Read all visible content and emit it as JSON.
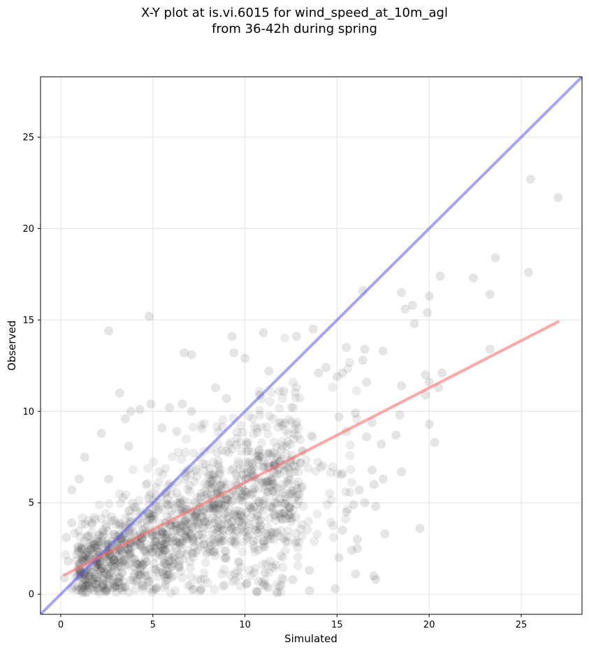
{
  "chart_data": {
    "type": "scatter",
    "title": [
      "X-Y plot at is.vi.6015 for wind_speed_at_10m_agl",
      "from 36-42h during spring"
    ],
    "xlabel": "Simulated",
    "ylabel": "Observed",
    "xlim": [
      -1.1,
      28.3
    ],
    "ylim": [
      -1.1,
      28.3
    ],
    "xticks": [
      0,
      5,
      10,
      15,
      20,
      25
    ],
    "yticks": [
      0,
      5,
      10,
      15,
      20,
      25
    ],
    "grid": true,
    "colors": {
      "points": "#000000",
      "identity_line": "#5a5aff",
      "fit_line": "#ff6b6b"
    },
    "identity_line": {
      "from": [
        -1.1,
        -1.1
      ],
      "to": [
        28.3,
        28.3
      ]
    },
    "fit_line": {
      "from": [
        0.2,
        1.05
      ],
      "to": [
        27.0,
        14.9
      ]
    },
    "points": [
      [
        25.5,
        22.7
      ],
      [
        27.0,
        21.7
      ],
      [
        23.6,
        18.4
      ],
      [
        20.6,
        17.4
      ],
      [
        22.4,
        17.3
      ],
      [
        25.4,
        17.6
      ],
      [
        16.4,
        16.6
      ],
      [
        23.3,
        16.4
      ],
      [
        18.5,
        16.5
      ],
      [
        20.0,
        16.3
      ],
      [
        19.1,
        15.8
      ],
      [
        18.7,
        15.6
      ],
      [
        19.9,
        15.4
      ],
      [
        19.2,
        14.8
      ],
      [
        4.8,
        15.2
      ],
      [
        2.6,
        14.4
      ],
      [
        13.7,
        14.5
      ],
      [
        11.0,
        14.3
      ],
      [
        9.3,
        14.1
      ],
      [
        12.8,
        14.1
      ],
      [
        15.5,
        13.5
      ],
      [
        16.5,
        13.4
      ],
      [
        17.5,
        13.3
      ],
      [
        23.3,
        13.4
      ],
      [
        6.7,
        13.2
      ],
      [
        7.1,
        13.1
      ],
      [
        9.4,
        13.2
      ],
      [
        10.0,
        12.9
      ],
      [
        16.4,
        12.8
      ],
      [
        11.3,
        12.2
      ],
      [
        14.4,
        12.4
      ],
      [
        16.6,
        11.6
      ],
      [
        18.5,
        11.4
      ],
      [
        19.8,
        12.0
      ],
      [
        20.7,
        12.1
      ],
      [
        20.0,
        11.6
      ],
      [
        19.8,
        10.9
      ],
      [
        20.5,
        11.3
      ],
      [
        3.2,
        11.0
      ],
      [
        17.4,
        8.2
      ],
      [
        18.4,
        9.8
      ],
      [
        20.0,
        9.3
      ],
      [
        20.3,
        8.3
      ],
      [
        18.2,
        8.7
      ],
      [
        18.5,
        6.7
      ],
      [
        19.5,
        3.6
      ],
      [
        17.6,
        3.3
      ],
      [
        17.0,
        1.0
      ],
      [
        17.1,
        0.8
      ],
      [
        16.0,
        1.1
      ],
      [
        15.9,
        4.9
      ],
      [
        17.1,
        4.8
      ],
      [
        17.5,
        6.3
      ],
      [
        16.9,
        6.8
      ],
      [
        13.5,
        0.2
      ],
      [
        13.5,
        1.3
      ],
      [
        14.9,
        0.3
      ],
      [
        12.6,
        0.8
      ],
      [
        11.1,
        1.2
      ],
      [
        10.1,
        0.6
      ],
      [
        2.2,
        8.8
      ],
      [
        1.3,
        7.5
      ],
      [
        0.6,
        5.7
      ],
      [
        1.0,
        6.3
      ],
      [
        2.6,
        6.3
      ],
      [
        3.7,
        8.1
      ],
      [
        3.5,
        9.6
      ],
      [
        3.8,
        10.0
      ],
      [
        4.3,
        10.1
      ],
      [
        5.9,
        10.2
      ],
      [
        6.6,
        10.4
      ],
      [
        4.9,
        10.4
      ],
      [
        5.5,
        9.1
      ],
      [
        6.3,
        8.9
      ],
      [
        7.1,
        10.0
      ],
      [
        8.4,
        11.3
      ],
      [
        9.0,
        10.7
      ],
      [
        10.8,
        10.9
      ],
      [
        12.1,
        11.1
      ],
      [
        14.0,
        12.1
      ],
      [
        15.0,
        11.9
      ],
      [
        15.3,
        12.1
      ],
      [
        15.1,
        9.7
      ],
      [
        16.0,
        9.9
      ],
      [
        16.6,
        8.6
      ],
      [
        15.5,
        8.9
      ],
      [
        16.9,
        9.4
      ],
      [
        17.0,
        6.0
      ],
      [
        16.2,
        5.7
      ],
      [
        16.5,
        5.0
      ],
      [
        15.5,
        4.5
      ],
      [
        15.3,
        3.5
      ],
      [
        16.1,
        3.0
      ],
      [
        16.1,
        2.5
      ],
      [
        15.8,
        2.4
      ],
      [
        15.1,
        2.0
      ],
      [
        0.3,
        3.1
      ],
      [
        0.6,
        3.9
      ],
      [
        0.4,
        1.8
      ],
      [
        0.6,
        0.3
      ],
      [
        0.9,
        1.0
      ],
      [
        1.4,
        0.5
      ],
      [
        1.9,
        1.5
      ],
      [
        0.2,
        0.9
      ]
    ]
  }
}
